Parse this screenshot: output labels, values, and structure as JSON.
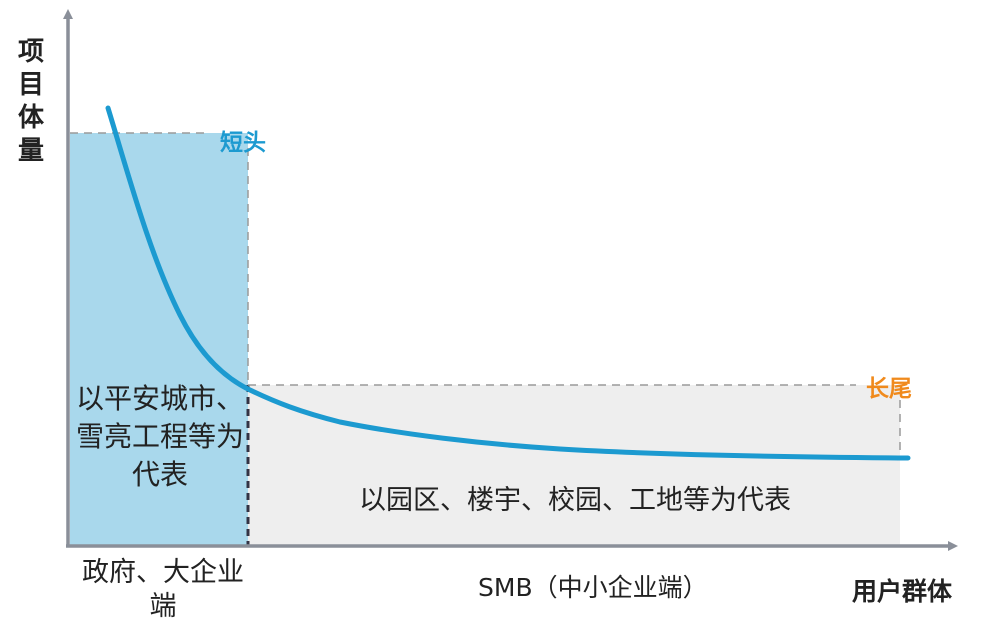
{
  "diagram": {
    "y_axis_label": "项目体量",
    "x_axis_label": "用户群体",
    "head_tag": "短头",
    "tail_tag": "长尾",
    "head_description": "以平安城市、雪亮工程等为代表",
    "tail_description": "以园区、楼宇、校园、工地等为代表",
    "head_category": "政府、大企业端",
    "tail_category": "SMB（中小企业端）"
  },
  "colors": {
    "curve": "#1c9ad0",
    "head_fill": "#a9d8ec",
    "tail_fill": "#eeeeee",
    "head_tag": "#1c9ad0",
    "tail_tag": "#f08a1c",
    "axis": "#8a8f99",
    "guide": "#9a9a9a",
    "text": "#222222"
  }
}
